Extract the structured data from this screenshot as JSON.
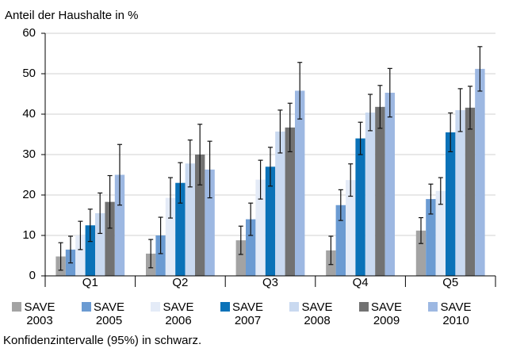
{
  "chart_data": {
    "type": "bar",
    "ylabel": "Anteil der Haushalte in %",
    "note": "Konfidenzintervalle (95%) in schwarz.",
    "categories": [
      "Q1",
      "Q2",
      "Q3",
      "Q4",
      "Q5"
    ],
    "ylim": [
      0,
      60
    ],
    "yticks": [
      0,
      10,
      20,
      30,
      40,
      50,
      60
    ],
    "grid": true,
    "series": [
      {
        "name": "SAVE 2003",
        "color": "#a3a3a3",
        "values": [
          4.8,
          5.5,
          8.8,
          6.3,
          11.2
        ],
        "errors": [
          3.4,
          3.5,
          3.5,
          3.5,
          3.2
        ]
      },
      {
        "name": "SAVE 2005",
        "color": "#6b9bd2",
        "values": [
          6.5,
          10,
          14,
          17.5,
          19
        ],
        "errors": [
          3.3,
          4.5,
          4,
          3.8,
          3.7
        ]
      },
      {
        "name": "SAVE 2006",
        "color": "#e4ebf7",
        "values": [
          10,
          19.3,
          23.8,
          23.7,
          21
        ],
        "errors": [
          3.5,
          5,
          4.8,
          4,
          3.3
        ]
      },
      {
        "name": "SAVE 2007",
        "color": "#0a72b8",
        "values": [
          12.5,
          23,
          27,
          34,
          35.5
        ],
        "errors": [
          4,
          5,
          4.8,
          4,
          4.8
        ]
      },
      {
        "name": "SAVE 2008",
        "color": "#c9d9f0",
        "values": [
          15.5,
          27.8,
          35.7,
          40.4,
          41
        ],
        "errors": [
          5,
          5.8,
          5.3,
          4.5,
          5.3
        ]
      },
      {
        "name": "SAVE 2009",
        "color": "#727272",
        "values": [
          18.3,
          30,
          36.7,
          41.8,
          41.6
        ],
        "errors": [
          6.5,
          7.5,
          6,
          5.3,
          5.3
        ]
      },
      {
        "name": "SAVE 2010",
        "color": "#9db8e2",
        "values": [
          25,
          26.3,
          45.8,
          45.3,
          51.2
        ],
        "errors": [
          7.5,
          7,
          7,
          6,
          5.5
        ]
      }
    ]
  }
}
